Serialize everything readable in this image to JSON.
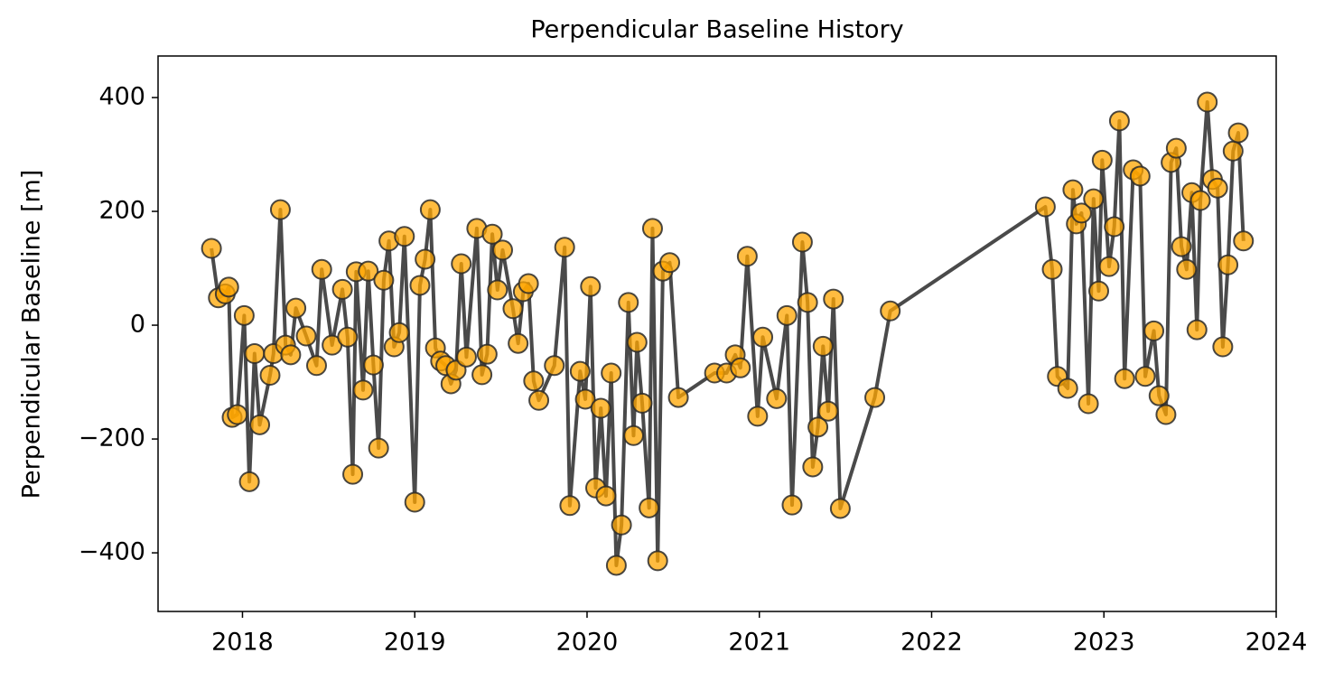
{
  "chart_data": {
    "type": "line",
    "title": "Perpendicular Baseline History",
    "ylabel": "Perpendicular Baseline [m]",
    "x": [
      2017.82,
      2017.86,
      2017.9,
      2017.92,
      2017.94,
      2017.97,
      2018.01,
      2018.04,
      2018.07,
      2018.1,
      2018.16,
      2018.18,
      2018.22,
      2018.25,
      2018.28,
      2018.31,
      2018.37,
      2018.43,
      2018.46,
      2018.52,
      2018.58,
      2018.61,
      2018.64,
      2018.66,
      2018.7,
      2018.73,
      2018.76,
      2018.79,
      2018.82,
      2018.85,
      2018.88,
      2018.91,
      2018.94,
      2019.0,
      2019.03,
      2019.06,
      2019.09,
      2019.12,
      2019.15,
      2019.18,
      2019.21,
      2019.24,
      2019.27,
      2019.3,
      2019.36,
      2019.39,
      2019.42,
      2019.45,
      2019.48,
      2019.51,
      2019.57,
      2019.6,
      2019.63,
      2019.66,
      2019.69,
      2019.72,
      2019.81,
      2019.87,
      2019.9,
      2019.96,
      2019.99,
      2020.02,
      2020.05,
      2020.08,
      2020.11,
      2020.14,
      2020.17,
      2020.2,
      2020.24,
      2020.27,
      2020.29,
      2020.32,
      2020.36,
      2020.38,
      2020.41,
      2020.44,
      2020.48,
      2020.53,
      2020.74,
      2020.81,
      2020.86,
      2020.89,
      2020.93,
      2020.99,
      2021.02,
      2021.1,
      2021.16,
      2021.19,
      2021.25,
      2021.28,
      2021.31,
      2021.34,
      2021.37,
      2021.4,
      2021.43,
      2021.47,
      2021.67,
      2021.76,
      2022.66,
      2022.7,
      2022.73,
      2022.79,
      2022.82,
      2022.84,
      2022.87,
      2022.91,
      2022.94,
      2022.97,
      2022.99,
      2023.03,
      2023.06,
      2023.09,
      2023.12,
      2023.17,
      2023.21,
      2023.24,
      2023.29,
      2023.32,
      2023.36,
      2023.39,
      2023.42,
      2023.45,
      2023.48,
      2023.51,
      2023.54,
      2023.56,
      2023.6,
      2023.63,
      2023.66,
      2023.69,
      2023.72,
      2023.75,
      2023.78,
      2023.81
    ],
    "values": [
      135,
      48,
      55,
      67,
      -162,
      -157,
      17,
      -275,
      -50,
      -175,
      -88,
      -50,
      203,
      -35,
      -52,
      30,
      -19,
      -71,
      98,
      -35,
      63,
      -21,
      -262,
      94,
      -114,
      95,
      -70,
      -216,
      79,
      148,
      -38,
      -13,
      156,
      -311,
      70,
      116,
      203,
      -40,
      -63,
      -71,
      -103,
      -79,
      108,
      -56,
      170,
      -87,
      -51,
      160,
      62,
      132,
      29,
      -32,
      59,
      73,
      -98,
      -132,
      -71,
      137,
      -317,
      -81,
      -130,
      68,
      -286,
      -146,
      -300,
      -84,
      -422,
      -351,
      40,
      -194,
      -30,
      -137,
      -321,
      170,
      -414,
      95,
      110,
      -127,
      -84,
      -84,
      -52,
      -75,
      121,
      -160,
      -21,
      -129,
      17,
      -316,
      146,
      40,
      -249,
      -179,
      -37,
      -151,
      46,
      -322,
      -127,
      25,
      208,
      98,
      -90,
      -111,
      238,
      178,
      197,
      -138,
      222,
      60,
      290,
      103,
      173,
      359,
      -94,
      273,
      262,
      -90,
      -10,
      -124,
      -157,
      286,
      311,
      138,
      98,
      233,
      -8,
      219,
      392,
      256,
      241,
      -38,
      106,
      306,
      338,
      148
    ],
    "line_color": "#404040",
    "marker_color": "#ffa500",
    "marker_edge_color": "#2a2a2a",
    "xlim": [
      2017.51,
      2024
    ],
    "xticks": [
      2018,
      2019,
      2020,
      2021,
      2022,
      2023,
      2024
    ],
    "ylim": [
      -503,
      473
    ],
    "yticks": [
      {
        "value": -400,
        "label": "−400"
      },
      {
        "value": -200,
        "label": "−200"
      },
      0,
      200,
      400
    ]
  }
}
